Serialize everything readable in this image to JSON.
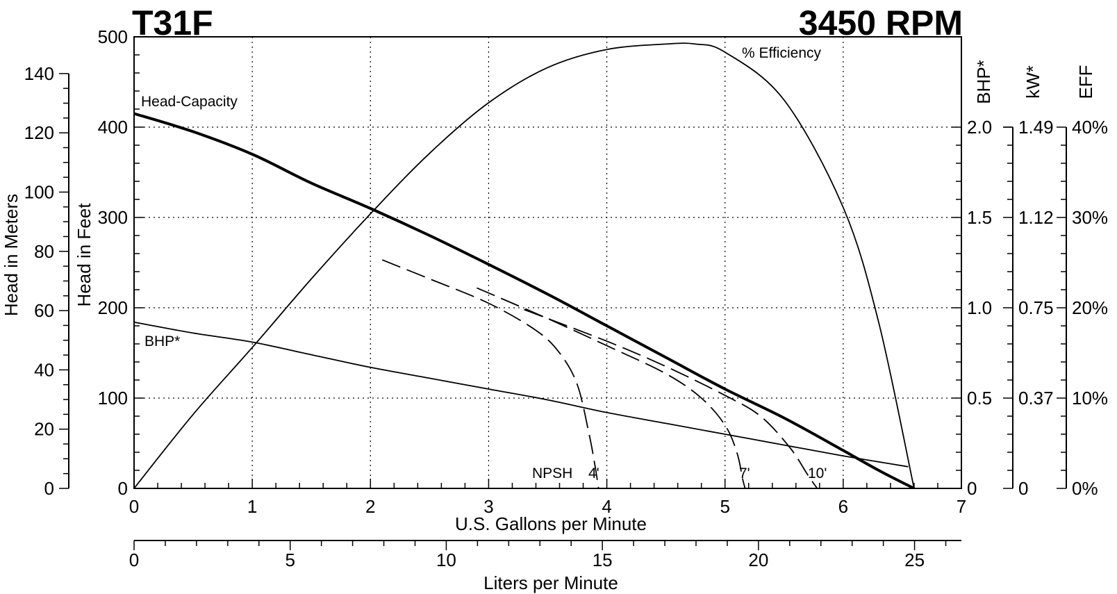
{
  "chart_data": {
    "type": "line",
    "title": "T31F",
    "speed": "3450 RPM",
    "x": {
      "label": "U.S. Gallons per Minute",
      "range": [
        0,
        7
      ],
      "ticks": [
        "0",
        "1",
        "2",
        "3",
        "4",
        "5",
        "6",
        "7"
      ]
    },
    "x_secondary": {
      "label": "Liters per Minute",
      "range": [
        0,
        26.5
      ],
      "ticks": [
        "0",
        "5",
        "10",
        "15",
        "20",
        "25"
      ]
    },
    "y_feet": {
      "label": "Head in Feet",
      "range": [
        0,
        500
      ],
      "ticks": [
        "0",
        "100",
        "200",
        "300",
        "400",
        "500"
      ]
    },
    "y_meters": {
      "label": "Head in Meters",
      "range": [
        0,
        152.4
      ],
      "ticks": [
        "0",
        "20",
        "40",
        "60",
        "80",
        "100",
        "120",
        "140"
      ]
    },
    "y_bhp": {
      "label": "BHP*",
      "range": [
        0,
        2.5
      ],
      "ticks": [
        "0",
        "0.5",
        "1.0",
        "1.5",
        "2.0"
      ]
    },
    "y_kw": {
      "label": "kW*",
      "ticks": [
        "0",
        "0.37",
        "0.75",
        "1.12",
        "1.49"
      ]
    },
    "y_eff": {
      "label": "EFF",
      "range": [
        0,
        50
      ],
      "ticks": [
        "0%",
        "10%",
        "20%",
        "30%",
        "40%"
      ]
    },
    "grid": true,
    "series": [
      {
        "name": "Head-Capacity",
        "axis": "feet",
        "style": "bold",
        "points": [
          [
            0,
            415
          ],
          [
            0.5,
            395
          ],
          [
            1,
            370
          ],
          [
            1.5,
            338
          ],
          [
            2,
            310
          ],
          [
            2.5,
            280
          ],
          [
            3,
            248
          ],
          [
            3.5,
            215
          ],
          [
            4,
            180
          ],
          [
            4.5,
            145
          ],
          [
            5,
            110
          ],
          [
            5.5,
            78
          ],
          [
            6,
            42
          ],
          [
            6.3,
            20
          ],
          [
            6.6,
            0
          ]
        ]
      },
      {
        "name": "% Efficiency",
        "axis": "eff",
        "style": "thin",
        "points": [
          [
            0,
            0
          ],
          [
            0.5,
            8.2
          ],
          [
            1,
            15.6
          ],
          [
            1.5,
            23.2
          ],
          [
            2,
            30.4
          ],
          [
            2.5,
            37.1
          ],
          [
            3,
            42.7
          ],
          [
            3.5,
            46.6
          ],
          [
            4,
            48.6
          ],
          [
            4.5,
            49.2
          ],
          [
            4.75,
            49.2
          ],
          [
            5,
            48.3
          ],
          [
            5.5,
            43
          ],
          [
            6,
            31.1
          ],
          [
            6.3,
            18.4
          ],
          [
            6.6,
            0
          ]
        ]
      },
      {
        "name": "BHP*",
        "axis": "bhp",
        "style": "thin",
        "points": [
          [
            0,
            0.92
          ],
          [
            0.5,
            0.86
          ],
          [
            1,
            0.81
          ],
          [
            1.5,
            0.74
          ],
          [
            2,
            0.67
          ],
          [
            2.5,
            0.61
          ],
          [
            3,
            0.55
          ],
          [
            3.5,
            0.49
          ],
          [
            4,
            0.42
          ],
          [
            4.5,
            0.36
          ],
          [
            5,
            0.3
          ],
          [
            5.5,
            0.24
          ],
          [
            6,
            0.18
          ],
          [
            6.55,
            0.12
          ]
        ]
      }
    ],
    "npsh_curves": [
      {
        "label": "4'",
        "points": [
          [
            2.1,
            253
          ],
          [
            2.5,
            232
          ],
          [
            3,
            205
          ],
          [
            3.4,
            175
          ],
          [
            3.6,
            150
          ],
          [
            3.75,
            115
          ],
          [
            3.85,
            60
          ],
          [
            3.9,
            25
          ],
          [
            3.93,
            0
          ]
        ]
      },
      {
        "label": "7'",
        "points": [
          [
            2.9,
            222
          ],
          [
            3.5,
            188
          ],
          [
            4,
            158
          ],
          [
            4.5,
            127
          ],
          [
            4.8,
            100
          ],
          [
            5,
            70
          ],
          [
            5.1,
            40
          ],
          [
            5.15,
            10
          ],
          [
            5.17,
            0
          ]
        ]
      },
      {
        "label": "10'",
        "points": [
          [
            3.3,
            198
          ],
          [
            4,
            163
          ],
          [
            4.5,
            135
          ],
          [
            5,
            103
          ],
          [
            5.3,
            80
          ],
          [
            5.55,
            45
          ],
          [
            5.7,
            15
          ],
          [
            5.78,
            0
          ]
        ]
      }
    ],
    "annotations": {
      "head_capacity": "Head-Capacity",
      "efficiency": "% Efficiency",
      "bhp": "BHP*",
      "npsh": "NPSH",
      "npsh_4": "4'",
      "npsh_7": "7'",
      "npsh_10": "10'"
    }
  }
}
